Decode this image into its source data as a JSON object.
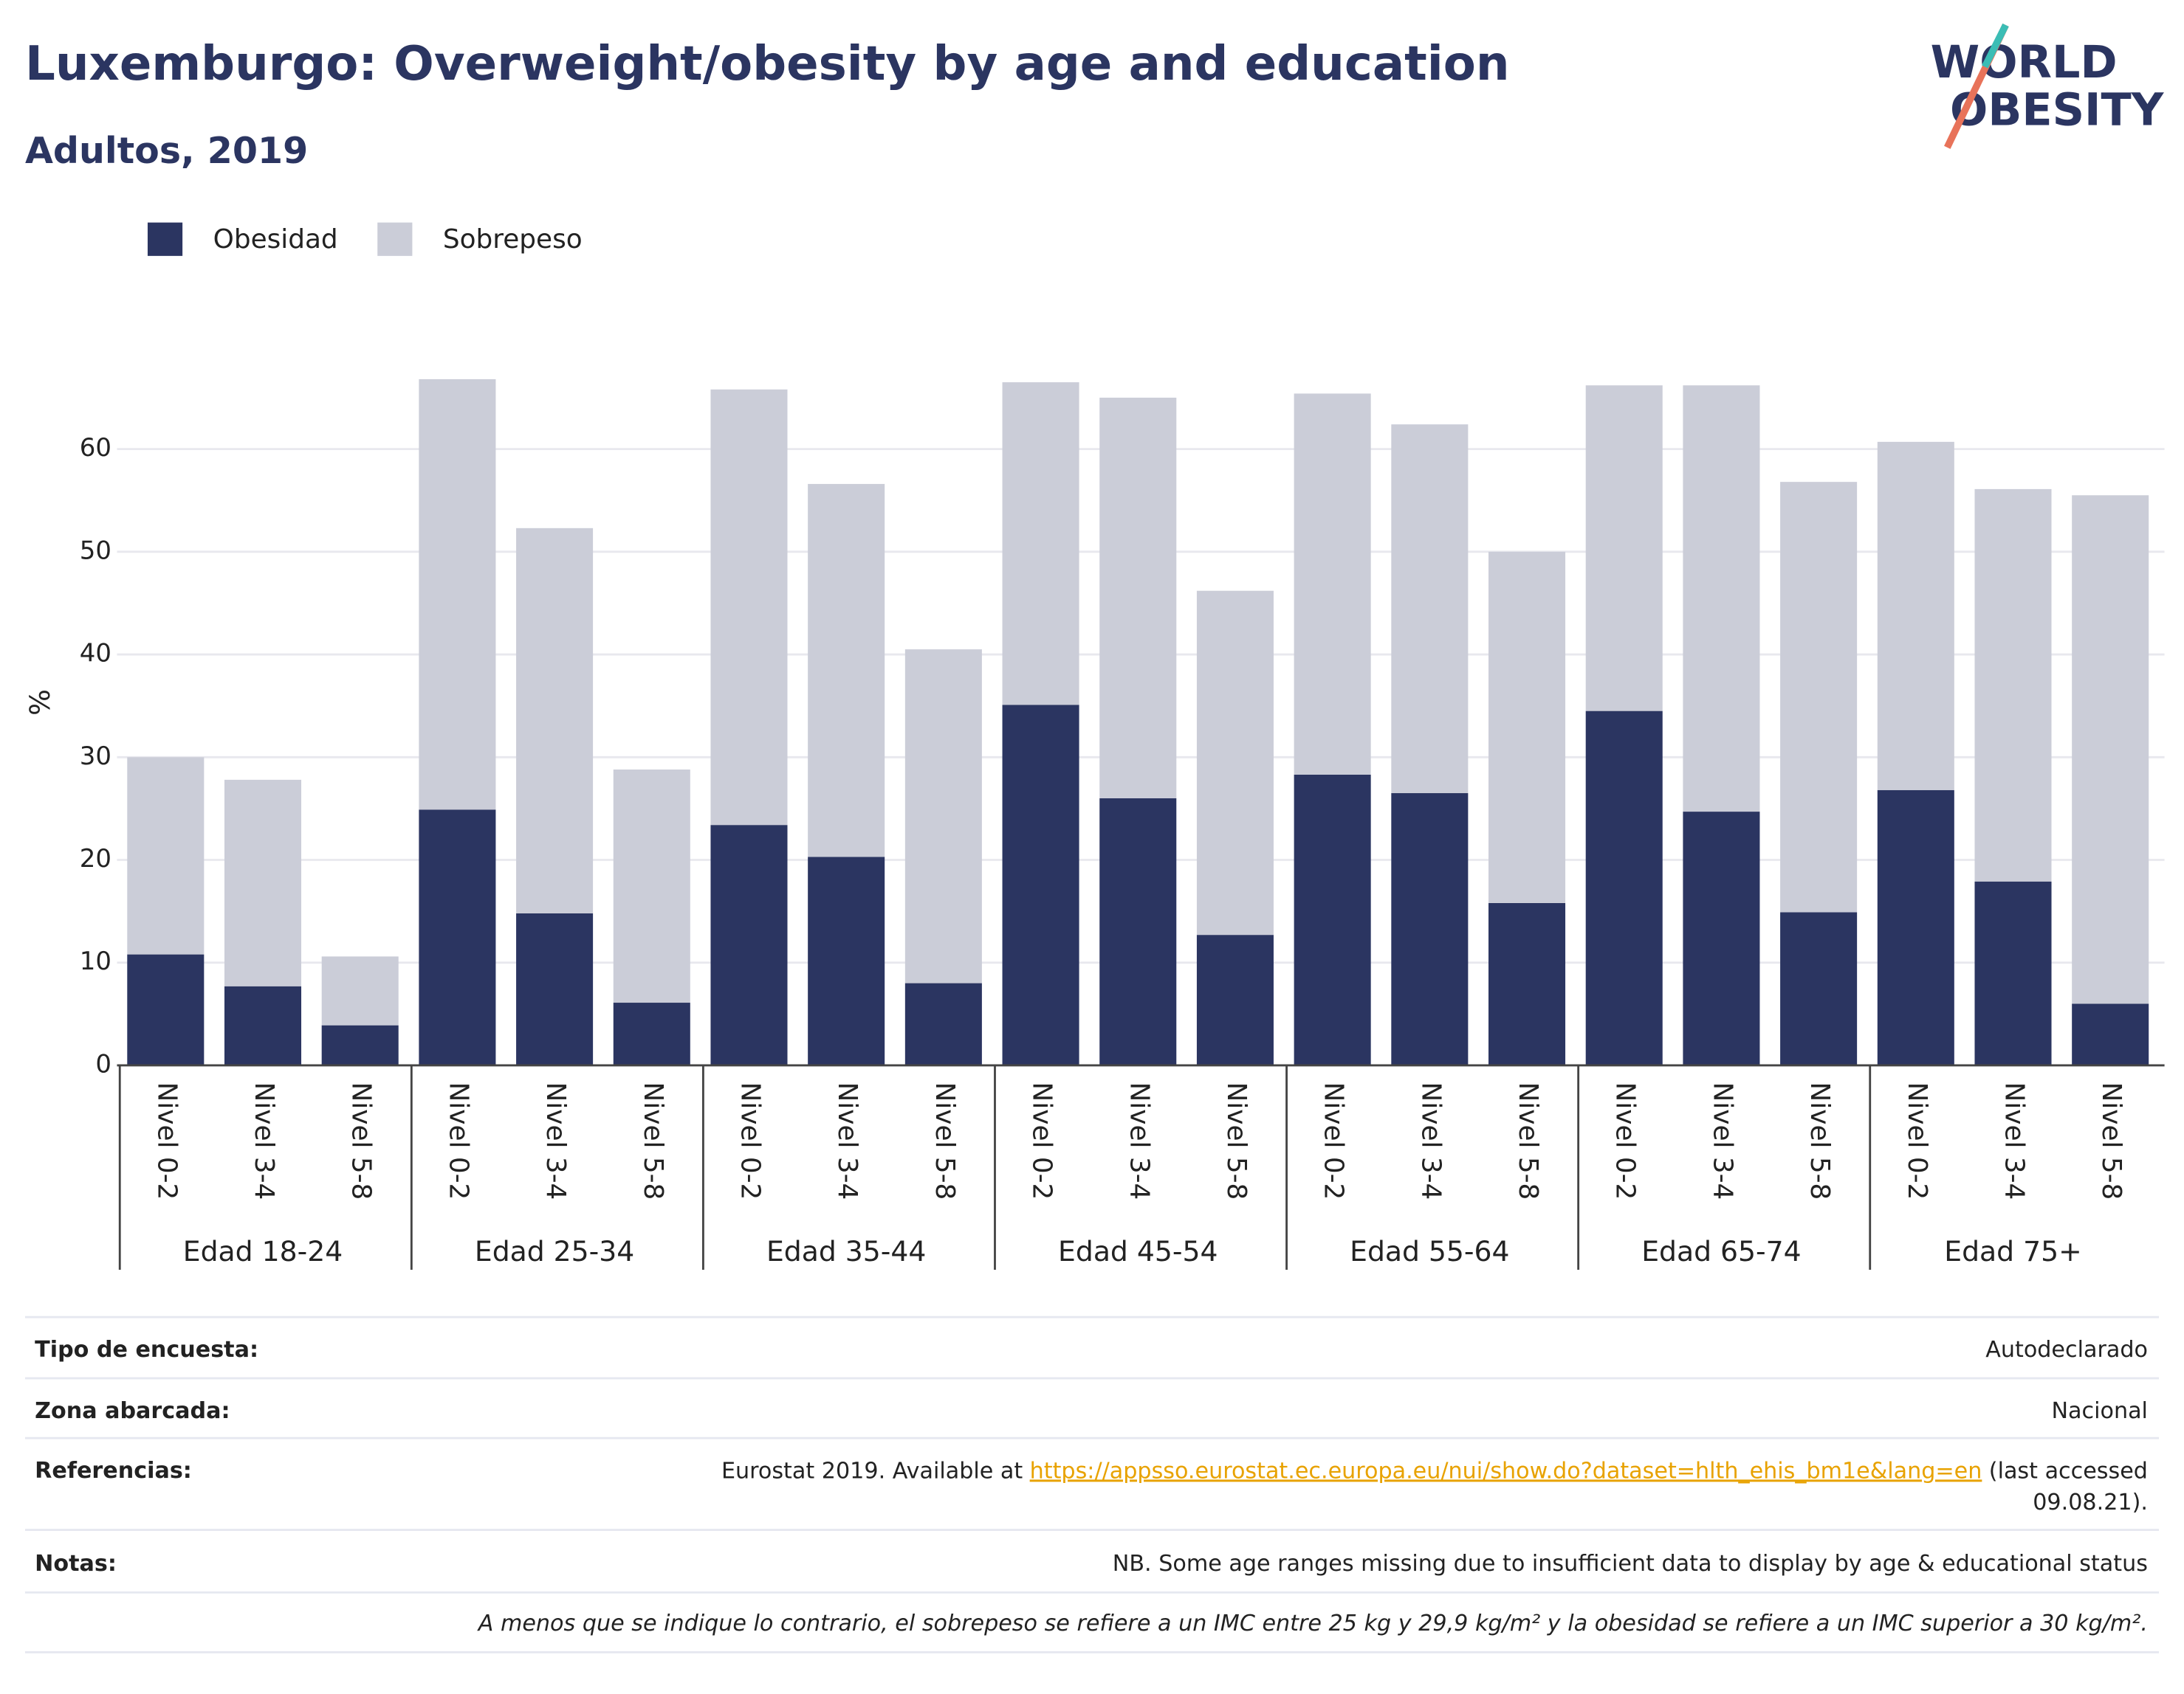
{
  "chart_data": {
    "type": "stacked_bar",
    "title": "Luxemburgo: Overweight/obesity by age and education",
    "subtitle": "Adultos, 2019",
    "y_label": "%",
    "categories": [
      "Nivel 0-2",
      "Nivel 3-4",
      "Nivel 5-8",
      "Nivel 0-2",
      "Nivel 3-4",
      "Nivel 5-8",
      "Nivel 0-2",
      "Nivel 3-4",
      "Nivel 5-8",
      "Nivel 0-2",
      "Nivel 3-4",
      "Nivel 5-8",
      "Nivel 0-2",
      "Nivel 3-4",
      "Nivel 5-8",
      "Nivel 0-2",
      "Nivel 3-4",
      "Nivel 5-8",
      "Nivel 0-2",
      "Nivel 3-4",
      "Nivel 5-8"
    ],
    "groups": [
      "Edad 18-24",
      "Edad 25-34",
      "Edad 35-44",
      "Edad 45-54",
      "Edad 55-64",
      "Edad 65-74",
      "Edad 75+"
    ],
    "series": [
      {
        "name": "Obesidad",
        "color": "#2b3561",
        "values": [
          10.8,
          7.7,
          3.9,
          24.9,
          14.8,
          6.1,
          23.4,
          20.3,
          8.0,
          35.1,
          26.0,
          12.7,
          28.3,
          26.5,
          15.8,
          34.5,
          24.7,
          14.9,
          26.8,
          17.9,
          6.0
        ]
      },
      {
        "name": "Sobrepeso",
        "color": "#cbcdd8",
        "values": [
          19.2,
          20.1,
          6.7,
          41.9,
          37.5,
          22.7,
          42.4,
          36.3,
          32.5,
          31.4,
          39.0,
          33.5,
          37.1,
          35.9,
          34.2,
          31.7,
          41.5,
          41.9,
          33.9,
          38.2,
          49.5
        ]
      }
    ],
    "ylim": [
      0,
      70
    ],
    "yticks": [
      0,
      10,
      20,
      30,
      40,
      50,
      60
    ],
    "grid": true,
    "legend": "top-left"
  },
  "logo": [
    "WORLD",
    "OBESITY"
  ],
  "footer": {
    "rows": [
      {
        "label": "Tipo de encuesta:",
        "value": "Autodeclarado"
      },
      {
        "label": "Zona abarcada:",
        "value": "Nacional"
      }
    ],
    "references": {
      "label": "Referencias:",
      "line1": [
        "Eurostat 2019. Available at",
        "https://appsso.eurostat.ec.europa.eu/nui/show.do?dataset=hlth_ehis_bm1e&lang=en",
        "(last accessed"
      ],
      "line2": "09.08.21)."
    },
    "notes": {
      "label": "Notas:",
      "value": "NB. Some age ranges missing due to insufficient data to display by age & educational status"
    },
    "footnote": "A menos que se indique lo contrario, el sobrepeso se refiere a un IMC entre 25 kg y 29,9 kg/m² y la obesidad se refiere a un IMC superior a 30 kg/m²."
  }
}
